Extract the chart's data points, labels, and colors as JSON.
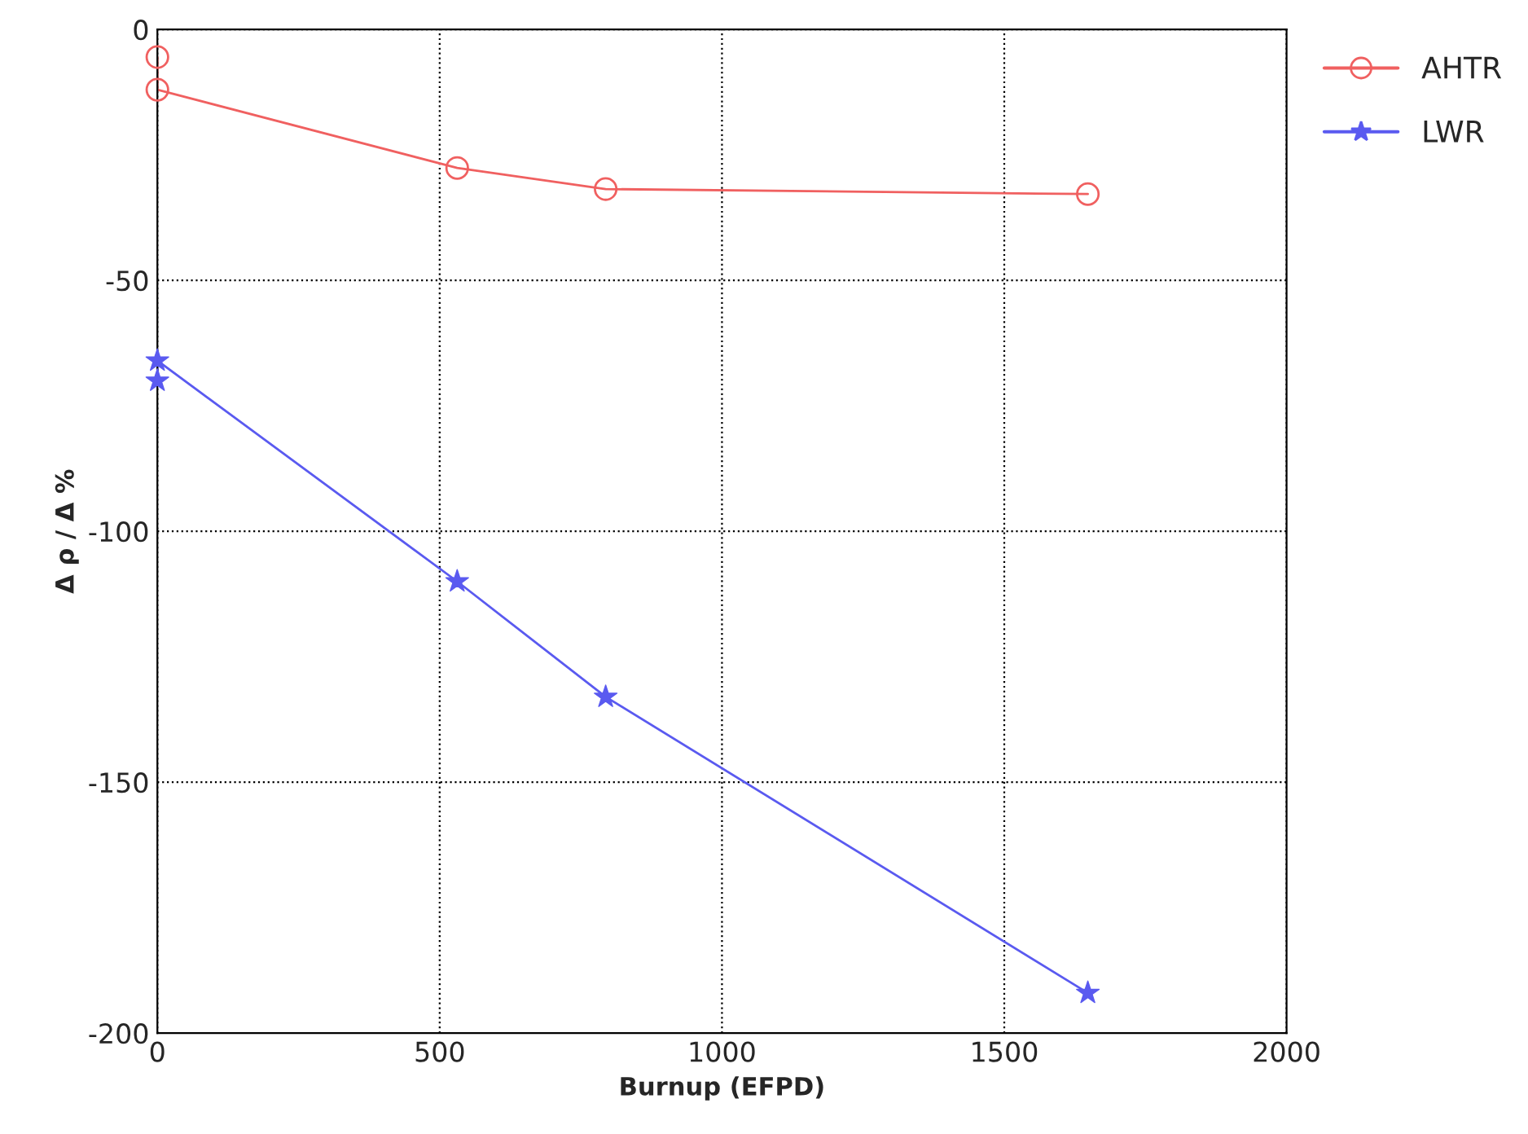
{
  "chart_data": {
    "type": "line",
    "xlabel": "Burnup (EFPD)",
    "ylabel": "Δ ρ / Δ %",
    "series": [
      {
        "name": "AHTR",
        "color": "#f06060",
        "marker": "circle",
        "x": [
          0,
          0,
          531,
          794,
          1648
        ],
        "values": [
          -5.5,
          -12,
          -27.6,
          -31.8,
          -32.8
        ]
      },
      {
        "name": "LWR",
        "color": "#5a5af0",
        "marker": "star",
        "x": [
          0,
          0,
          531,
          794,
          1648
        ],
        "values": [
          -70,
          -66,
          -110,
          -133,
          -192
        ]
      }
    ],
    "xlim": [
      0,
      2000
    ],
    "xticks": [
      0,
      500,
      1000,
      1500,
      2000
    ],
    "ylim": [
      -200,
      0
    ],
    "yticks": [
      -200,
      -150,
      -100,
      -50,
      0
    ],
    "grid": true,
    "legend": "top right",
    "line_style": "solid"
  }
}
